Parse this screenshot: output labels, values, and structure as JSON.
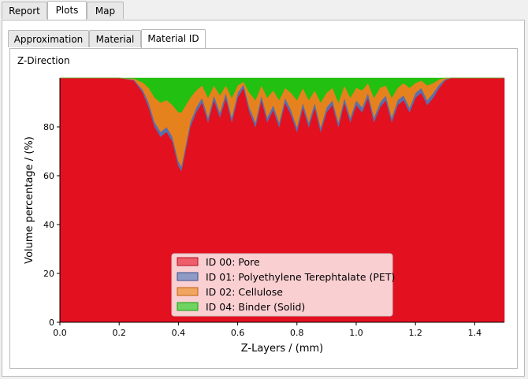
{
  "outer_tabs": [
    {
      "label": "Report",
      "active": false
    },
    {
      "label": "Plots",
      "active": true
    },
    {
      "label": "Map",
      "active": false
    }
  ],
  "inner_tabs": [
    {
      "label": "Approximation",
      "active": false
    },
    {
      "label": "Material",
      "active": false
    },
    {
      "label": "Material ID",
      "active": true
    }
  ],
  "plot_heading": "Z-Direction",
  "chart_data": {
    "type": "area",
    "stacked": true,
    "xlabel": "Z-Layers / (mm)",
    "ylabel": "Volume percentage / (%)",
    "xlim": [
      0.0,
      1.5
    ],
    "ylim": [
      0,
      100
    ],
    "xticks": [
      "0.0",
      "0.2",
      "0.4",
      "0.6",
      "0.8",
      "1.0",
      "1.2",
      "1.4"
    ],
    "yticks": [
      "0",
      "20",
      "40",
      "60",
      "80"
    ],
    "grid": false,
    "legend_position": "bottom-center",
    "x": [
      0.0,
      0.2,
      0.25,
      0.28,
      0.3,
      0.32,
      0.34,
      0.36,
      0.38,
      0.4,
      0.41,
      0.42,
      0.44,
      0.46,
      0.48,
      0.5,
      0.52,
      0.54,
      0.56,
      0.58,
      0.6,
      0.62,
      0.64,
      0.66,
      0.68,
      0.7,
      0.72,
      0.74,
      0.76,
      0.78,
      0.8,
      0.82,
      0.84,
      0.86,
      0.88,
      0.9,
      0.92,
      0.94,
      0.96,
      0.98,
      1.0,
      1.02,
      1.04,
      1.06,
      1.08,
      1.1,
      1.12,
      1.14,
      1.16,
      1.18,
      1.2,
      1.22,
      1.24,
      1.26,
      1.28,
      1.3,
      1.32,
      1.35,
      1.4,
      1.5
    ],
    "series": [
      {
        "name": "ID 00: Pore",
        "color": "#e31020",
        "values": [
          100,
          100,
          99,
          94,
          88,
          80,
          76,
          78,
          74,
          64,
          62,
          68,
          80,
          86,
          90,
          82,
          91,
          84,
          92,
          82,
          92,
          96,
          86,
          80,
          91,
          82,
          87,
          80,
          90,
          85,
          78,
          88,
          80,
          88,
          78,
          86,
          89,
          80,
          90,
          82,
          89,
          86,
          92,
          82,
          88,
          91,
          82,
          89,
          91,
          86,
          92,
          94,
          89,
          92,
          96,
          99,
          100,
          100,
          100,
          100
        ]
      },
      {
        "name": "ID 01: Polyethylene Terephtalate (PET)",
        "color": "#5b6faa",
        "values": [
          0,
          0,
          0.4,
          1.2,
          2,
          2,
          2,
          2,
          2,
          2,
          2,
          2,
          2,
          2,
          2,
          2,
          2,
          2,
          2,
          2,
          2,
          1.5,
          2,
          2,
          2,
          2,
          2,
          2,
          2,
          2,
          2,
          2,
          2,
          2,
          2,
          2,
          2,
          2,
          2,
          2,
          2,
          2,
          2,
          2,
          2,
          2,
          2,
          2,
          2,
          2,
          2,
          2,
          2,
          2,
          1.5,
          0.6,
          0,
          0,
          0,
          0
        ]
      },
      {
        "name": "ID 02: Cellulose",
        "color": "#e6821e",
        "values": [
          0,
          0,
          0.4,
          3,
          6,
          10,
          12,
          11,
          13,
          20,
          22,
          18,
          10,
          7,
          5,
          8,
          4,
          7,
          3,
          8,
          3,
          1,
          6,
          9,
          4,
          8,
          6,
          9,
          4,
          7,
          11,
          6,
          9,
          5,
          10,
          6,
          5,
          8,
          5,
          8,
          5,
          7,
          4,
          8,
          6,
          4,
          8,
          5,
          5,
          8,
          4,
          3,
          6,
          4,
          2,
          0.4,
          0,
          0,
          0,
          0
        ]
      },
      {
        "name": "ID 04: Binder (Solid)",
        "color": "#22c010",
        "values": [
          0,
          0,
          0.2,
          1.8,
          4,
          8,
          10,
          9,
          11,
          14,
          14,
          12,
          8,
          5,
          3,
          8,
          3,
          7,
          3,
          8,
          3,
          1.5,
          6,
          9,
          3,
          8,
          5,
          9,
          4,
          6,
          9,
          4,
          9,
          5,
          10,
          6,
          4,
          10,
          3,
          8,
          4,
          5,
          2,
          8,
          4,
          3,
          8,
          4,
          2,
          4,
          2,
          1,
          3,
          2,
          0.5,
          0,
          0,
          0,
          0,
          0
        ]
      }
    ]
  },
  "legend": [
    {
      "label": "ID 00: Pore",
      "fill": "#ef5f6b",
      "stroke": "#b01020"
    },
    {
      "label": "ID 01: Polyethylene Terephtalate (PET)",
      "fill": "#8f9bc5",
      "stroke": "#3a4f8a"
    },
    {
      "label": "ID 02: Cellulose",
      "fill": "#f0a660",
      "stroke": "#c06010"
    },
    {
      "label": "ID 04: Binder (Solid)",
      "fill": "#6fd462",
      "stroke": "#18a010"
    }
  ]
}
